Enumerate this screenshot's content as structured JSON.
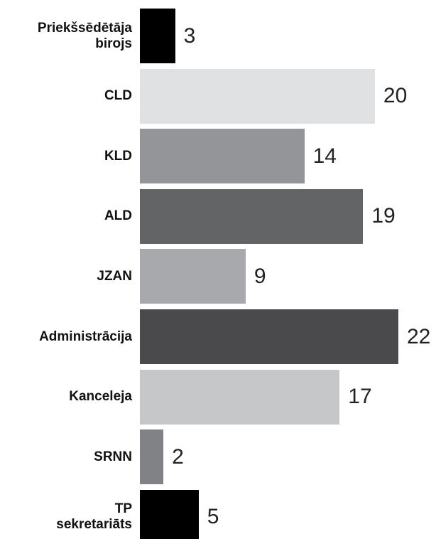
{
  "chart_data": {
    "type": "bar",
    "orientation": "horizontal",
    "categories": [
      "Priekšsēdētāja\nbirojs",
      "CLD",
      "KLD",
      "ALD",
      "JZAN",
      "Administrācija",
      "Kanceleja",
      "SRNN",
      "TP\nsekretariāts"
    ],
    "values": [
      3,
      20,
      14,
      19,
      9,
      22,
      17,
      2,
      5
    ],
    "colors": [
      "#000000",
      "#e0e1e3",
      "#939598",
      "#636466",
      "#a7a9ac",
      "#4a4a4c",
      "#c6c7c9",
      "#808285",
      "#000000"
    ],
    "xlim": [
      0,
      22
    ]
  }
}
